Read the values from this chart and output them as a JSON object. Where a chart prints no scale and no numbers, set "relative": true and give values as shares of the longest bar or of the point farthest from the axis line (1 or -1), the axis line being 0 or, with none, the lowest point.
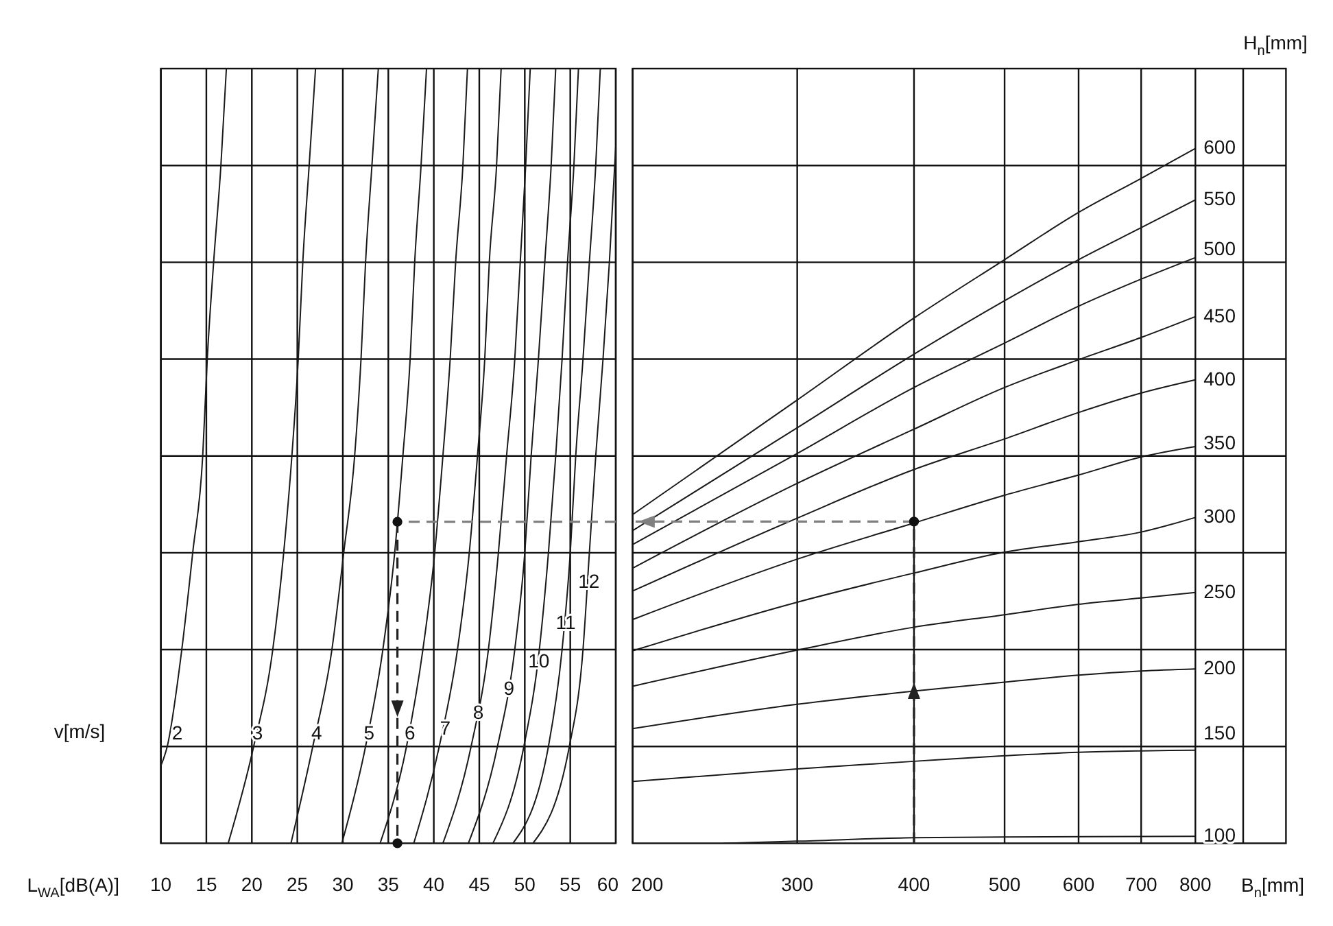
{
  "chart_data": [
    {
      "type": "line",
      "xlabel": "L$_{WA}$[dB(A)]",
      "legend_title": "v[m/s]",
      "xlim": [
        10,
        60
      ],
      "xticks": [
        10,
        15,
        20,
        25,
        30,
        35,
        40,
        45,
        50,
        55,
        60
      ],
      "relative": true,
      "grid": true,
      "series": [
        {
          "name": "2",
          "color": "#1a1a1a",
          "x": [
            10,
            10.7,
            12.3,
            13.5,
            14.6,
            15.1,
            15.8,
            16.6,
            17.2
          ],
          "values": [
            0.1,
            0.125,
            0.25,
            0.375,
            0.5,
            0.625,
            0.75,
            0.875,
            1
          ]
        },
        {
          "name": "3",
          "color": "#1a1a1a",
          "x": [
            17.4,
            20.2,
            22.3,
            23.5,
            24.4,
            25.1,
            25.6,
            26.3,
            27.0
          ],
          "values": [
            0,
            0.125,
            0.25,
            0.375,
            0.5,
            0.625,
            0.75,
            0.875,
            1
          ]
        },
        {
          "name": "4",
          "color": "#1a1a1a",
          "x": [
            24.3,
            26.7,
            28.8,
            30.1,
            31.3,
            32.0,
            32.5,
            33.2,
            33.9
          ],
          "values": [
            0,
            0.125,
            0.25,
            0.375,
            0.5,
            0.625,
            0.75,
            0.875,
            1
          ]
        },
        {
          "name": "5",
          "color": "#1a1a1a",
          "x": [
            29.9,
            32.5,
            34.4,
            35.7,
            36.6,
            37.4,
            37.9,
            38.6,
            39.2
          ],
          "values": [
            0,
            0.125,
            0.25,
            0.375,
            0.5,
            0.625,
            0.75,
            0.875,
            1
          ]
        },
        {
          "name": "6",
          "color": "#1a1a1a",
          "x": [
            34.1,
            37.0,
            38.8,
            40.1,
            41.0,
            41.8,
            42.4,
            43.2,
            43.7
          ],
          "values": [
            0,
            0.125,
            0.25,
            0.375,
            0.5,
            0.625,
            0.75,
            0.875,
            1
          ]
        },
        {
          "name": "7",
          "color": "#1a1a1a",
          "x": [
            37.8,
            40.6,
            42.6,
            43.9,
            44.8,
            45.6,
            46.1,
            46.9,
            47.4
          ],
          "values": [
            0,
            0.125,
            0.25,
            0.375,
            0.5,
            0.625,
            0.75,
            0.875,
            1
          ]
        },
        {
          "name": "8",
          "color": "#1a1a1a",
          "x": [
            41.0,
            44.1,
            46.0,
            47.1,
            48.0,
            48.9,
            49.5,
            50.1,
            50.6
          ],
          "values": [
            0,
            0.125,
            0.25,
            0.375,
            0.5,
            0.625,
            0.75,
            0.875,
            1
          ]
        },
        {
          "name": "9",
          "color": "#1a1a1a",
          "x": [
            43.8,
            47.0,
            48.9,
            50.0,
            50.7,
            51.5,
            52.2,
            52.9,
            53.4
          ],
          "values": [
            0,
            0.125,
            0.25,
            0.375,
            0.5,
            0.625,
            0.75,
            0.875,
            1
          ]
        },
        {
          "name": "10",
          "color": "#1a1a1a",
          "x": [
            46.5,
            49.9,
            51.6,
            52.6,
            53.4,
            54.1,
            54.7,
            55.4,
            55.9
          ],
          "values": [
            0,
            0.125,
            0.25,
            0.375,
            0.5,
            0.625,
            0.75,
            0.875,
            1
          ]
        },
        {
          "name": "11",
          "color": "#1a1a1a",
          "x": [
            48.7,
            52.6,
            54.1,
            55.0,
            55.6,
            56.4,
            57.1,
            57.8,
            58.3
          ],
          "values": [
            0,
            0.125,
            0.25,
            0.375,
            0.5,
            0.625,
            0.75,
            0.875,
            1
          ]
        },
        {
          "name": "12",
          "color": "#1a1a1a",
          "x": [
            50.9,
            54.9,
            56.4,
            57.1,
            57.8,
            58.6,
            59.3,
            60
          ],
          "values": [
            0,
            0.125,
            0.25,
            0.375,
            0.5,
            0.625,
            0.75,
            0.9
          ]
        },
        {
          "type": "line",
          "color": "#808080",
          "line_style": "dashed",
          "x": [
            60,
            36
          ],
          "values": [
            0.415,
            0.415
          ]
        },
        {
          "type": "line",
          "color": "#222222",
          "line_style": "dashed",
          "x": [
            36,
            36
          ],
          "values": [
            0.415,
            0
          ]
        },
        {
          "type": "scatter",
          "color": "#111111",
          "marker": "circle",
          "x": [
            36,
            36
          ],
          "values": [
            0.415,
            0
          ]
        }
      ]
    },
    {
      "type": "line",
      "xlabel": "B$_{n}$[mm]",
      "legend_title": "H$_{n}$[mm]",
      "log": "x",
      "xlim": [
        200,
        1000
      ],
      "xticks": [
        200,
        300,
        400,
        500,
        600,
        700,
        800,
        {
          "value": 900,
          "label": null
        }
      ],
      "relative": true,
      "grid": true,
      "series": [
        {
          "name": "100",
          "color": "#1a1a1a",
          "x": [
            250,
            300,
            400,
            500,
            800
          ],
          "values": [
            0,
            0.003,
            0.008,
            0.009,
            0.01
          ]
        },
        {
          "name": "150",
          "color": "#1a1a1a",
          "x": [
            200,
            300,
            400,
            500,
            600,
            700,
            800
          ],
          "values": [
            0.089,
            0.107,
            0.118,
            0.126,
            0.131,
            0.133,
            0.134
          ]
        },
        {
          "name": "200",
          "color": "#1a1a1a",
          "x": [
            200,
            300,
            400,
            500,
            600,
            700,
            800
          ],
          "values": [
            0.165,
            0.2,
            0.219,
            0.232,
            0.242,
            0.248,
            0.251
          ]
        },
        {
          "name": "250",
          "color": "#1a1a1a",
          "x": [
            200,
            300,
            400,
            500,
            600,
            700,
            800
          ],
          "values": [
            0.226,
            0.278,
            0.311,
            0.329,
            0.344,
            0.353,
            0.361
          ]
        },
        {
          "name": "300",
          "color": "#1a1a1a",
          "x": [
            200,
            300,
            400,
            500,
            600,
            700,
            800
          ],
          "values": [
            0.277,
            0.347,
            0.389,
            0.419,
            0.434,
            0.448,
            0.469
          ]
        },
        {
          "name": "350",
          "color": "#1a1a1a",
          "x": [
            200,
            300,
            400,
            500,
            600,
            700,
            800
          ],
          "values": [
            0.322,
            0.409,
            0.461,
            0.501,
            0.53,
            0.556,
            0.571
          ]
        },
        {
          "name": "400",
          "color": "#1a1a1a",
          "x": [
            200,
            300,
            400,
            500,
            600,
            700,
            800
          ],
          "values": [
            0.363,
            0.468,
            0.538,
            0.582,
            0.62,
            0.648,
            0.667
          ]
        },
        {
          "name": "450",
          "color": "#1a1a1a",
          "x": [
            200,
            300,
            400,
            500,
            600,
            700,
            800
          ],
          "values": [
            0.396,
            0.518,
            0.596,
            0.656,
            0.696,
            0.728,
            0.758
          ]
        },
        {
          "name": "500",
          "color": "#1a1a1a",
          "x": [
            200,
            300,
            400,
            500,
            600,
            700,
            800
          ],
          "values": [
            0.43,
            0.561,
            0.656,
            0.72,
            0.773,
            0.812,
            0.843
          ]
        },
        {
          "name": "550",
          "color": "#1a1a1a",
          "x": [
            200,
            300,
            400,
            500,
            600,
            700,
            800
          ],
          "values": [
            0.45,
            0.598,
            0.704,
            0.781,
            0.84,
            0.886,
            0.926
          ]
        },
        {
          "name": "600",
          "color": "#1a1a1a",
          "x": [
            200,
            300,
            400,
            500,
            600,
            700,
            800
          ],
          "values": [
            0.473,
            0.638,
            0.756,
            0.84,
            0.908,
            0.957,
            1
          ]
        },
        {
          "type": "line",
          "color": "#222222",
          "line_style": "dashed",
          "x": [
            400,
            400
          ],
          "values": [
            0,
            0.463
          ]
        },
        {
          "type": "line",
          "color": "#808080",
          "line_style": "dashed",
          "x": [
            400,
            200
          ],
          "values": [
            0.463,
            0.463
          ]
        },
        {
          "type": "scatter",
          "color": "#111111",
          "marker": "circle",
          "x": [
            400
          ],
          "values": [
            0.463
          ]
        }
      ]
    }
  ]
}
